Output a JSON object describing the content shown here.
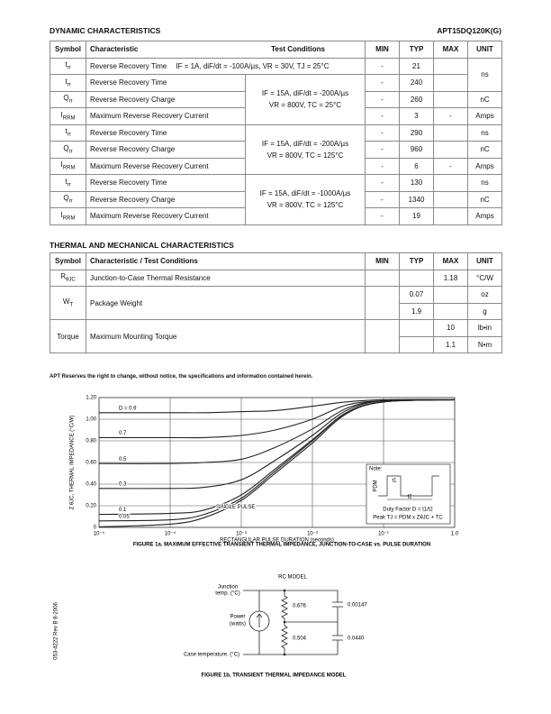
{
  "header": {
    "title": "DYNAMIC CHARACTERISTICS",
    "part": "APT15DQ120K(G)"
  },
  "dynamic": {
    "columns": [
      "Symbol",
      "Characteristic",
      "Test Conditions",
      "MIN",
      "TYP",
      "MAX",
      "UNIT"
    ],
    "rows": [
      {
        "symbol": {
          "base": "t",
          "sub": "rr"
        },
        "characteristic": "Reverse Recovery Time",
        "condition": "IF = 1A,  diF/dt = -100A/µs, VR = 30V,  TJ = 25°C",
        "min": "-",
        "typ": 21,
        "unit": "ns"
      },
      {
        "symbol": {
          "base": "t",
          "sub": "rr"
        },
        "characteristic": "Reverse Recovery Time",
        "condition": [
          "IF = 15A,  diF/dt = -200A/µs",
          "VR = 800V,  TC = 25°C"
        ],
        "min": "-",
        "typ": 240
      },
      {
        "symbol": {
          "base": "Q",
          "sub": "rr"
        },
        "characteristic": "Reverse Recovery Charge",
        "min": "-",
        "typ": 260,
        "unit": "nC"
      },
      {
        "symbol": {
          "base": "I",
          "sub": "RRM"
        },
        "characteristic": "Maximum Reverse Recovery Current",
        "min": "-",
        "typ": 3,
        "max": "-",
        "unit": "Amps"
      },
      {
        "symbol": {
          "base": "t",
          "sub": "rr"
        },
        "characteristic": "Reverse Recovery Time",
        "condition": [
          "IF = 15A,  diF/dt = -200A/µs",
          "VR = 800V,  TC = 125°C"
        ],
        "min": "-",
        "typ": 290,
        "unit": "ns"
      },
      {
        "symbol": {
          "base": "Q",
          "sub": "rr"
        },
        "characteristic": "Reverse Recovery Charge",
        "min": "-",
        "typ": 960,
        "unit": "nC"
      },
      {
        "symbol": {
          "base": "I",
          "sub": "RRM"
        },
        "characteristic": "Maximum Reverse Recovery Current",
        "min": "-",
        "typ": 6,
        "max": "-",
        "unit": "Amps"
      },
      {
        "symbol": {
          "base": "t",
          "sub": "rr"
        },
        "characteristic": "Reverse Recovery Time",
        "condition": [
          "IF = 15A,  diF/dt = -1000A/µs",
          "VR = 800V,  TC = 125°C"
        ],
        "min": "-",
        "typ": 130,
        "unit": "ns"
      },
      {
        "symbol": {
          "base": "Q",
          "sub": "rr"
        },
        "characteristic": "Reverse Recovery Charge",
        "min": "-",
        "typ": 1340,
        "unit": "nC"
      },
      {
        "symbol": {
          "base": "I",
          "sub": "RRM"
        },
        "characteristic": "Maximum Reverse Recovery Current",
        "min": "-",
        "typ": 19,
        "unit": "Amps"
      }
    ]
  },
  "thermal": {
    "title": "THERMAL AND MECHANICAL CHARACTERISTICS",
    "columns": [
      "Symbol",
      "Characteristic / Test Conditions",
      "MIN",
      "TYP",
      "MAX",
      "UNIT"
    ],
    "rows": [
      {
        "symbol": {
          "base": "R",
          "sub": "θJC"
        },
        "characteristic": "Junction-to-Case Thermal Resistance",
        "max": 1.18,
        "unit": "°C/W"
      },
      {
        "symbol": {
          "base": "W",
          "sub": "T"
        },
        "characteristic": "Package Weight",
        "typ": 0.07,
        "unit": "oz"
      },
      {
        "typ": 1.9,
        "unit": "g"
      },
      {
        "symbol": {
          "base": "Torque"
        },
        "characteristic": "Maximum Mounting Torque",
        "max": 10,
        "unit": "lb•in"
      },
      {
        "max": 1.1,
        "unit": "N•m"
      }
    ]
  },
  "notice": "APT Reserves the right to change, without notice, the specifications and information contained herein.",
  "chart_data": {
    "type": "line",
    "xscale": "log",
    "grid": true,
    "x_label": "RECTANGULAR PULSE DURATION (seconds)",
    "y_label": "Z θJC, THERMAL IMPEDANCE (°C/W)",
    "caption": "FIGURE 1a. MAXIMUM EFFECTIVE TRANSIENT THERMAL IMPEDANCE, JUNCTION-TO-CASE vs. PULSE DURATION",
    "xlim": [
      1e-05,
      1
    ],
    "ylim": [
      0,
      1.2
    ],
    "xticks": [
      {
        "value": 1e-05,
        "label": "10⁻⁵"
      },
      {
        "value": 0.0001,
        "label": "10⁻⁴"
      },
      {
        "value": 0.001,
        "label": "10⁻³"
      },
      {
        "value": 0.01,
        "label": "10⁻²"
      },
      {
        "value": 0.1,
        "label": "10⁻¹"
      },
      {
        "value": 1,
        "label": "1.0"
      }
    ],
    "yticks": [
      0,
      {
        "value": 0.2,
        "label": "0.20"
      },
      {
        "value": 0.4,
        "label": "0.40"
      },
      {
        "value": 0.6,
        "label": "0.60"
      },
      {
        "value": 0.8,
        "label": "0.80"
      },
      {
        "value": 1,
        "label": "1.00"
      },
      {
        "value": 1.2,
        "label": "1.20"
      }
    ],
    "x": [
      1e-05,
      0.0001,
      0.0003,
      0.001,
      0.003,
      0.01,
      0.03,
      0.1,
      1
    ],
    "series": [
      {
        "name": "D = 0.9",
        "color": "#222222",
        "values": [
          1.06,
          1.06,
          1.06,
          1.07,
          1.08,
          1.12,
          1.16,
          1.18,
          1.18
        ]
      },
      {
        "name": "0.7",
        "color": "#222222",
        "values": [
          0.83,
          0.83,
          0.83,
          0.85,
          0.9,
          1.0,
          1.13,
          1.17,
          1.18
        ]
      },
      {
        "name": "0.5",
        "color": "#222222",
        "values": [
          0.59,
          0.59,
          0.6,
          0.63,
          0.74,
          0.91,
          1.1,
          1.17,
          1.18
        ]
      },
      {
        "name": "0.3",
        "color": "#222222",
        "values": [
          0.36,
          0.36,
          0.37,
          0.44,
          0.62,
          0.85,
          1.08,
          1.17,
          1.18
        ]
      },
      {
        "name": "0.1",
        "color": "#222222",
        "values": [
          0.12,
          0.13,
          0.16,
          0.3,
          0.54,
          0.81,
          1.06,
          1.16,
          1.18
        ]
      },
      {
        "name": "0.05",
        "color": "#222222",
        "values": [
          0.06,
          0.07,
          0.12,
          0.27,
          0.52,
          0.8,
          1.06,
          1.16,
          1.18
        ]
      },
      {
        "name": "SINGLE PULSE",
        "color": "#222222",
        "values": [
          0.005,
          0.03,
          0.09,
          0.25,
          0.5,
          0.78,
          1.05,
          1.16,
          1.18
        ]
      }
    ],
    "note": {
      "label": "Note:",
      "pdm": "PDM",
      "t1": "t1",
      "t2": "t2",
      "duty": "Duty Factor D = t1/t2",
      "peak": "Peak TJ = PDM x ZθJC + TC"
    }
  },
  "rc_model": {
    "title": "RC MODEL",
    "junction": [
      "Junction",
      "temp. (°C)"
    ],
    "power": [
      "Power",
      "(watts)"
    ],
    "case": "Case temperature. (°C)",
    "r": [
      "0.676",
      "0.504"
    ],
    "c": [
      "0.00147",
      "0.0440"
    ],
    "caption": "FIGURE 1b, TRANSIENT  THERMAL  IMPEDANCE  MODEL"
  },
  "side": "053-4222   Rev   B   8-2006"
}
